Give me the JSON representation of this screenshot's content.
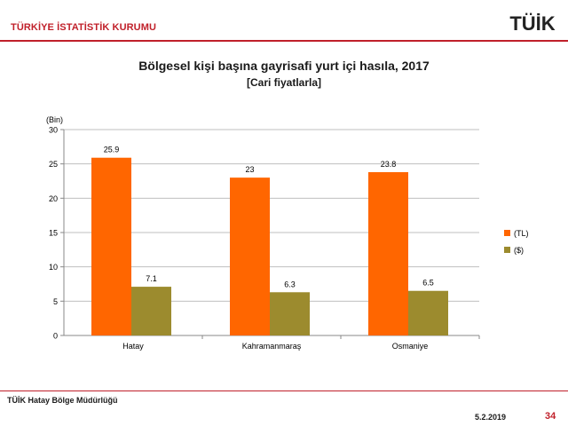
{
  "header": {
    "org_name": "TÜRKİYE İSTATİSTİK KURUMU",
    "logo_text": "TÜİK"
  },
  "footer": {
    "office": "TÜİK Hatay Bölge Müdürlüğü",
    "date": "5.2.2019",
    "page_number": "34"
  },
  "colors": {
    "brand": "#c0202a",
    "series_tl": "#ff6600",
    "series_usd": "#9c8b2e"
  },
  "chart_data": {
    "type": "bar",
    "title": "Bölgesel kişi başına gayrisafi yurt içi hasıla, 2017",
    "subtitle": "[Cari fiyatlarla]",
    "unit_label": "(Bin)",
    "categories": [
      "Hatay",
      "Kahramanmaraş",
      "Osmaniye"
    ],
    "series": [
      {
        "name": "(TL)",
        "values": [
          25.9,
          23,
          23.8
        ],
        "labels": [
          "25.9",
          "23",
          "23.8"
        ],
        "color": "#ff6600"
      },
      {
        "name": "($)",
        "values": [
          7.1,
          6.3,
          6.5
        ],
        "labels": [
          "7.1",
          "6.3",
          "6.5"
        ],
        "color": "#9c8b2e"
      }
    ],
    "ylim": [
      0,
      30
    ],
    "yticks": [
      "0",
      "5",
      "10",
      "15",
      "20",
      "25",
      "30"
    ],
    "grid": true,
    "legend_position": "right"
  }
}
